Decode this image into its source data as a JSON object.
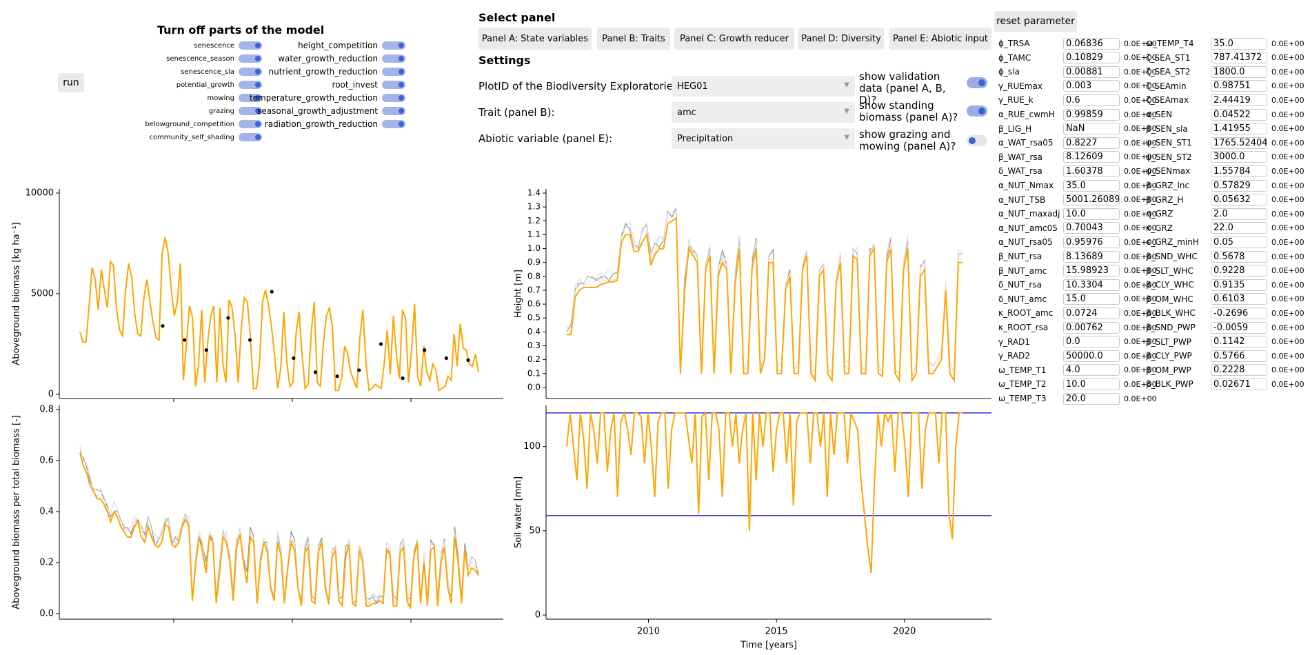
{
  "toggles": {
    "title": "Turn off parts of the model",
    "left": [
      "senescence",
      "senescence_season",
      "senescence_sla",
      "potential_growth",
      "mowing",
      "grazing",
      "belowground_competition",
      "community_self_shading"
    ],
    "right": [
      "height_competition",
      "water_growth_reduction",
      "nutrient_growth_reduction",
      "root_invest",
      "temperature_growth_reduction",
      "seasonal_growth_adjustment",
      "radiation_growth_reduction"
    ]
  },
  "run_label": "run",
  "select_panel": {
    "title": "Select panel",
    "buttons": [
      "Panel A: State variables",
      "Panel B: Traits",
      "Panel C: Growth reducer",
      "Panel D: Diversity",
      "Panel E: Abiotic input"
    ]
  },
  "settings": {
    "title": "Settings",
    "plot_label": "PlotID of the Biodiversity Exploratories:",
    "plot_value": "HEG01",
    "trait_label": "Trait (panel B):",
    "trait_value": "amc",
    "abiotic_label": "Abiotic variable (panel E):",
    "abiotic_value": "Precipitation",
    "show_validation": "show validation data (panel A, B, D)?",
    "show_standing": "show standing biomass (panel A)?",
    "show_grazing": "show grazing and mowing (panel A)?"
  },
  "reset_label": "reset parameter",
  "params_left": [
    [
      "ϕ_TRSA",
      "0.06836",
      "0.0E+00"
    ],
    [
      "ϕ_TAMC",
      "0.10829",
      "0.0E+00"
    ],
    [
      "ϕ_sla",
      "0.00881",
      "0.0E+00"
    ],
    [
      "γ_RUEmax",
      "0.003",
      "0.0E+00"
    ],
    [
      "γ_RUE_k",
      "0.6",
      "0.0E+00"
    ],
    [
      "α_RUE_cwmH",
      "0.99859",
      "0.0E+00"
    ],
    [
      "β_LIG_H",
      "NaN",
      "0.0E+00"
    ],
    [
      "α_WAT_rsa05",
      "0.8227",
      "0.0E+00"
    ],
    [
      "β_WAT_rsa",
      "8.12609",
      "0.0E+00"
    ],
    [
      "δ_WAT_rsa",
      "1.60378",
      "0.0E+00"
    ],
    [
      "α_NUT_Nmax",
      "35.0",
      "0.0E+00"
    ],
    [
      "α_NUT_TSB",
      "5001.26089",
      "0.0E+00"
    ],
    [
      "α_NUT_maxadj",
      "10.0",
      "0.0E+00"
    ],
    [
      "α_NUT_amc05",
      "0.70043",
      "0.0E+00"
    ],
    [
      "α_NUT_rsa05",
      "0.95976",
      "0.0E+00"
    ],
    [
      "β_NUT_rsa",
      "8.13689",
      "0.0E+00"
    ],
    [
      "β_NUT_amc",
      "15.98923",
      "0.0E+00"
    ],
    [
      "δ_NUT_rsa",
      "10.3304",
      "0.0E+00"
    ],
    [
      "δ_NUT_amc",
      "15.0",
      "0.0E+00"
    ],
    [
      "κ_ROOT_amc",
      "0.0724",
      "0.0E+00"
    ],
    [
      "κ_ROOT_rsa",
      "0.00762",
      "0.0E+00"
    ],
    [
      "γ_RAD1",
      "0.0",
      "0.0E+00"
    ],
    [
      "γ_RAD2",
      "50000.0",
      "0.0E+00"
    ],
    [
      "ω_TEMP_T1",
      "4.0",
      "0.0E+00"
    ],
    [
      "ω_TEMP_T2",
      "10.0",
      "0.0E+00"
    ],
    [
      "ω_TEMP_T3",
      "20.0",
      "0.0E+00"
    ]
  ],
  "params_right": [
    [
      "ω_TEMP_T4",
      "35.0",
      "0.0E+00"
    ],
    [
      "ζ_SEA_ST1",
      "787.41372",
      "0.0E+00"
    ],
    [
      "ζ_SEA_ST2",
      "1800.0",
      "0.0E+00"
    ],
    [
      "ζ_SEAmin",
      "0.98751",
      "0.0E+00"
    ],
    [
      "ζ_SEAmax",
      "2.44419",
      "0.0E+00"
    ],
    [
      "α_SEN",
      "0.04522",
      "0.0E+00"
    ],
    [
      "β_SEN_sla",
      "1.41955",
      "0.0E+00"
    ],
    [
      "ψ_SEN_ST1",
      "1765.52404",
      "0.0E+00"
    ],
    [
      "ψ_SEN_ST2",
      "3000.0",
      "0.0E+00"
    ],
    [
      "ψ_SENmax",
      "1.55784",
      "0.0E+00"
    ],
    [
      "β_GRZ_lnc",
      "0.57829",
      "0.0E+00"
    ],
    [
      "β_GRZ_H",
      "0.05632",
      "0.0E+00"
    ],
    [
      "η_GRZ",
      "2.0",
      "0.0E+00"
    ],
    [
      "κ_GRZ",
      "22.0",
      "0.0E+00"
    ],
    [
      "ϵ_GRZ_minH",
      "0.05",
      "0.0E+00"
    ],
    [
      "β_SND_WHC",
      "0.5678",
      "0.0E+00"
    ],
    [
      "β_SLT_WHC",
      "0.9228",
      "0.0E+00"
    ],
    [
      "β_CLY_WHC",
      "0.9135",
      "0.0E+00"
    ],
    [
      "β_OM_WHC",
      "0.6103",
      "0.0E+00"
    ],
    [
      "β_BLK_WHC",
      "-0.2696",
      "0.0E+00"
    ],
    [
      "β_SND_PWP",
      "-0.0059",
      "0.0E+00"
    ],
    [
      "β_SLT_PWP",
      "0.1142",
      "0.0E+00"
    ],
    [
      "β_CLY_PWP",
      "0.5766",
      "0.0E+00"
    ],
    [
      "β_OM_PWP",
      "0.2228",
      "0.0E+00"
    ],
    [
      "β_BLK_PWP",
      "0.02671",
      "0.0E+00"
    ]
  ],
  "colors": {
    "accent": "#ffa500",
    "grey": "#8c8c8c",
    "light": "#d9d9d9",
    "blue": "#0000dd",
    "toggle": "#3b63d6"
  },
  "chart_data": [
    {
      "type": "line",
      "ylabel": "Aboveground biomass [kg ha⁻¹]",
      "xlabel": "",
      "ylim": [
        0,
        10000
      ],
      "yticks": [
        "0",
        "5000",
        "10000"
      ],
      "series": [
        {
          "values": [
            3100,
            2600,
            2600,
            4400,
            6300,
            5700,
            4200,
            6200,
            5200,
            4300,
            6600,
            6400,
            4300,
            3200,
            2900,
            5200,
            6500,
            5800,
            4000,
            3000,
            2900,
            4800,
            5700,
            4600,
            3600,
            2800,
            2700,
            7000,
            7800,
            7000,
            5200,
            3900,
            4600,
            6500,
            700,
            2500,
            4400,
            3800,
            400,
            1500,
            4200,
            600,
            2600,
            3900,
            4400,
            600,
            4300,
            1500,
            600,
            4700,
            4300,
            2900,
            600,
            3200,
            4800,
            4600,
            2900,
            300,
            300,
            1500,
            4600,
            5200,
            4400,
            3300,
            1900,
            300,
            1300,
            4100,
            1600,
            400,
            600,
            3000,
            4100,
            2000,
            300,
            500,
            3000,
            4600,
            600,
            400,
            2500,
            3900,
            4300,
            3300,
            200,
            200,
            800,
            2400,
            2000,
            1100,
            700,
            300,
            2800,
            4200,
            1600,
            200,
            300,
            500,
            400,
            300,
            1500,
            3200,
            1000,
            3900,
            2000,
            800,
            4200,
            3800,
            600,
            2200,
            4500,
            900,
            400,
            2400,
            1100,
            700,
            1500,
            1200,
            200,
            300,
            400,
            900,
            700,
            3000,
            1400,
            3500,
            2300,
            2200,
            1500,
            1400,
            2000,
            1100
          ]
        }
      ],
      "points": [
        3400,
        2700,
        2200,
        3800,
        2700,
        5100,
        1800,
        1100,
        900,
        1200,
        2500,
        800,
        2200,
        1800,
        1700
      ]
    },
    {
      "type": "line",
      "ylabel": "Aboveground biomass per total biomass [-]",
      "xlabel": "",
      "ylim": [
        0,
        0.8
      ],
      "yticks": [
        "0.0",
        "0.2",
        "0.4",
        "0.6",
        "0.8"
      ],
      "series": [
        {
          "values": [
            0.63,
            0.58,
            0.55,
            0.5,
            0.48,
            0.45,
            0.45,
            0.43,
            0.4,
            0.36,
            0.4,
            0.38,
            0.34,
            0.32,
            0.3,
            0.3,
            0.34,
            0.36,
            0.3,
            0.28,
            0.34,
            0.3,
            0.27,
            0.26,
            0.28,
            0.35,
            0.34,
            0.27,
            0.26,
            0.28,
            0.34,
            0.37,
            0.34,
            0.05,
            0.2,
            0.3,
            0.24,
            0.16,
            0.3,
            0.28,
            0.04,
            0.16,
            0.3,
            0.28,
            0.2,
            0.05,
            0.26,
            0.31,
            0.2,
            0.12,
            0.3,
            0.28,
            0.04,
            0.2,
            0.28,
            0.24,
            0.1,
            0.05,
            0.28,
            0.23,
            0.04,
            0.18,
            0.28,
            0.25,
            0.1,
            0.03,
            0.24,
            0.26,
            0.05,
            0.04,
            0.24,
            0.28,
            0.1,
            0.04,
            0.22,
            0.25,
            0.05,
            0.03,
            0.22,
            0.27,
            0.04,
            0.03,
            0.25,
            0.2,
            0.03,
            0.03,
            0.04,
            0.04,
            0.05,
            0.04,
            0.25,
            0.23,
            0.03,
            0.03,
            0.24,
            0.26,
            0.05,
            0.02,
            0.22,
            0.28,
            0.04,
            0.2,
            0.03,
            0.25,
            0.26,
            0.03,
            0.2,
            0.26,
            0.1,
            0.04,
            0.3,
            0.2,
            0.04,
            0.25,
            0.15,
            0.18,
            0.17,
            0.15
          ]
        }
      ]
    },
    {
      "type": "line",
      "ylabel": "Height [m]",
      "xlabel": "",
      "ylim": [
        -0.05,
        1.4
      ],
      "yticks": [
        "0.0",
        "0.1",
        "0.2",
        "0.3",
        "0.4",
        "0.5",
        "0.6",
        "0.7",
        "0.8",
        "0.9",
        "1.0",
        "1.1",
        "1.2",
        "1.3",
        "1.4"
      ],
      "series": [
        {
          "values": [
            0.38,
            0.38,
            0.65,
            0.7,
            0.72,
            0.72,
            0.72,
            0.72,
            0.74,
            0.75,
            0.76,
            0.76,
            0.77,
            1.05,
            1.1,
            1.1,
            0.98,
            0.98,
            1.05,
            1.1,
            0.88,
            0.96,
            1.0,
            1.0,
            1.18,
            1.2,
            1.22,
            0.1,
            0.7,
            1.0,
            0.95,
            0.9,
            0.1,
            0.85,
            0.95,
            0.1,
            0.8,
            0.9,
            0.85,
            0.1,
            0.75,
            1.0,
            0.1,
            0.1,
            0.85,
            1.0,
            0.1,
            0.2,
            0.9,
            0.9,
            0.1,
            0.1,
            0.7,
            0.8,
            0.1,
            0.1,
            0.85,
            0.95,
            0.1,
            0.05,
            0.8,
            0.85,
            0.1,
            0.05,
            0.75,
            0.9,
            0.1,
            0.1,
            0.95,
            0.92,
            0.1,
            0.1,
            0.95,
            1.0,
            0.1,
            0.08,
            0.9,
            1.0,
            0.1,
            0.05,
            0.85,
            1.0,
            0.05,
            0.1,
            0.8,
            0.85,
            0.1,
            0.1,
            0.15,
            0.2,
            0.7,
            0.1,
            0.05,
            0.9,
            0.9
          ]
        }
      ]
    },
    {
      "type": "line",
      "ylabel": "Soil water [mm]",
      "xlabel": "Time [years]",
      "ylim": [
        0,
        122
      ],
      "yticks": [
        "0",
        "50",
        "100"
      ],
      "xticks": [
        "2010",
        "2015",
        "2020"
      ],
      "xlim": [
        2006,
        2023.4
      ],
      "series": [
        {
          "values": [
            100,
            120,
            100,
            80,
            120,
            105,
            75,
            120,
            110,
            90,
            120,
            120,
            85,
            110,
            120,
            70,
            115,
            120,
            110,
            95,
            120,
            120,
            118,
            90,
            120,
            100,
            70,
            115,
            120,
            120,
            75,
            110,
            120,
            120,
            120,
            120,
            105,
            90,
            120,
            60,
            118,
            120,
            80,
            120,
            120,
            110,
            70,
            120,
            120,
            100,
            120,
            90,
            110,
            120,
            50,
            120,
            80,
            120,
            100,
            120,
            120,
            85,
            110,
            120,
            120,
            90,
            120,
            65,
            115,
            120,
            120,
            120,
            90,
            120,
            120,
            100,
            120,
            70,
            120,
            95,
            120,
            120,
            120,
            90,
            120,
            115,
            110,
            80,
            60,
            40,
            25,
            80,
            120,
            100,
            120,
            115,
            120,
            85,
            120,
            120,
            100,
            70,
            120,
            120,
            120,
            75,
            110,
            120,
            120,
            120,
            90,
            120,
            120,
            60,
            45,
            100,
            120,
            120
          ]
        }
      ],
      "hlines": [
        120,
        59
      ]
    }
  ]
}
